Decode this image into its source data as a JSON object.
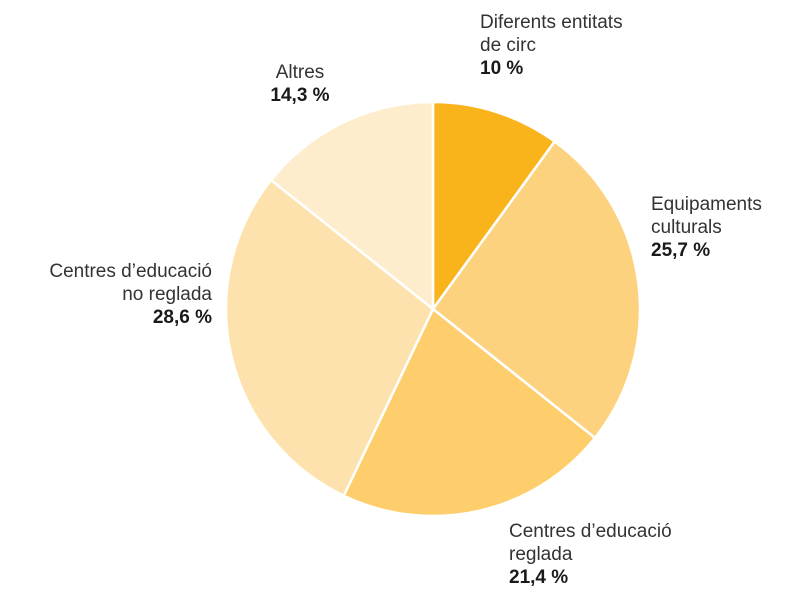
{
  "chart_data": {
    "type": "pie",
    "slices": [
      {
        "lines": [
          "Diferents entitats",
          "de circ"
        ],
        "pct_label": "10 %",
        "value": 10,
        "color": "#F9B41B"
      },
      {
        "lines": [
          "Equipaments",
          "culturals"
        ],
        "pct_label": "25,7 %",
        "value": 25.7,
        "color": "#FDD27F"
      },
      {
        "lines": [
          "Centres d’educació",
          "reglada"
        ],
        "pct_label": "21,4 %",
        "value": 21.4,
        "color": "#FECE6C"
      },
      {
        "lines": [
          "Centres d’educació",
          "no reglada"
        ],
        "pct_label": "28,6 %",
        "value": 28.6,
        "color": "#FEE2AD"
      },
      {
        "lines": [
          "Altres"
        ],
        "pct_label": "14,3 %",
        "value": 14.3,
        "color": "#FEEDCC"
      }
    ],
    "start_angle": "12 o'clock",
    "direction": "clockwise"
  }
}
